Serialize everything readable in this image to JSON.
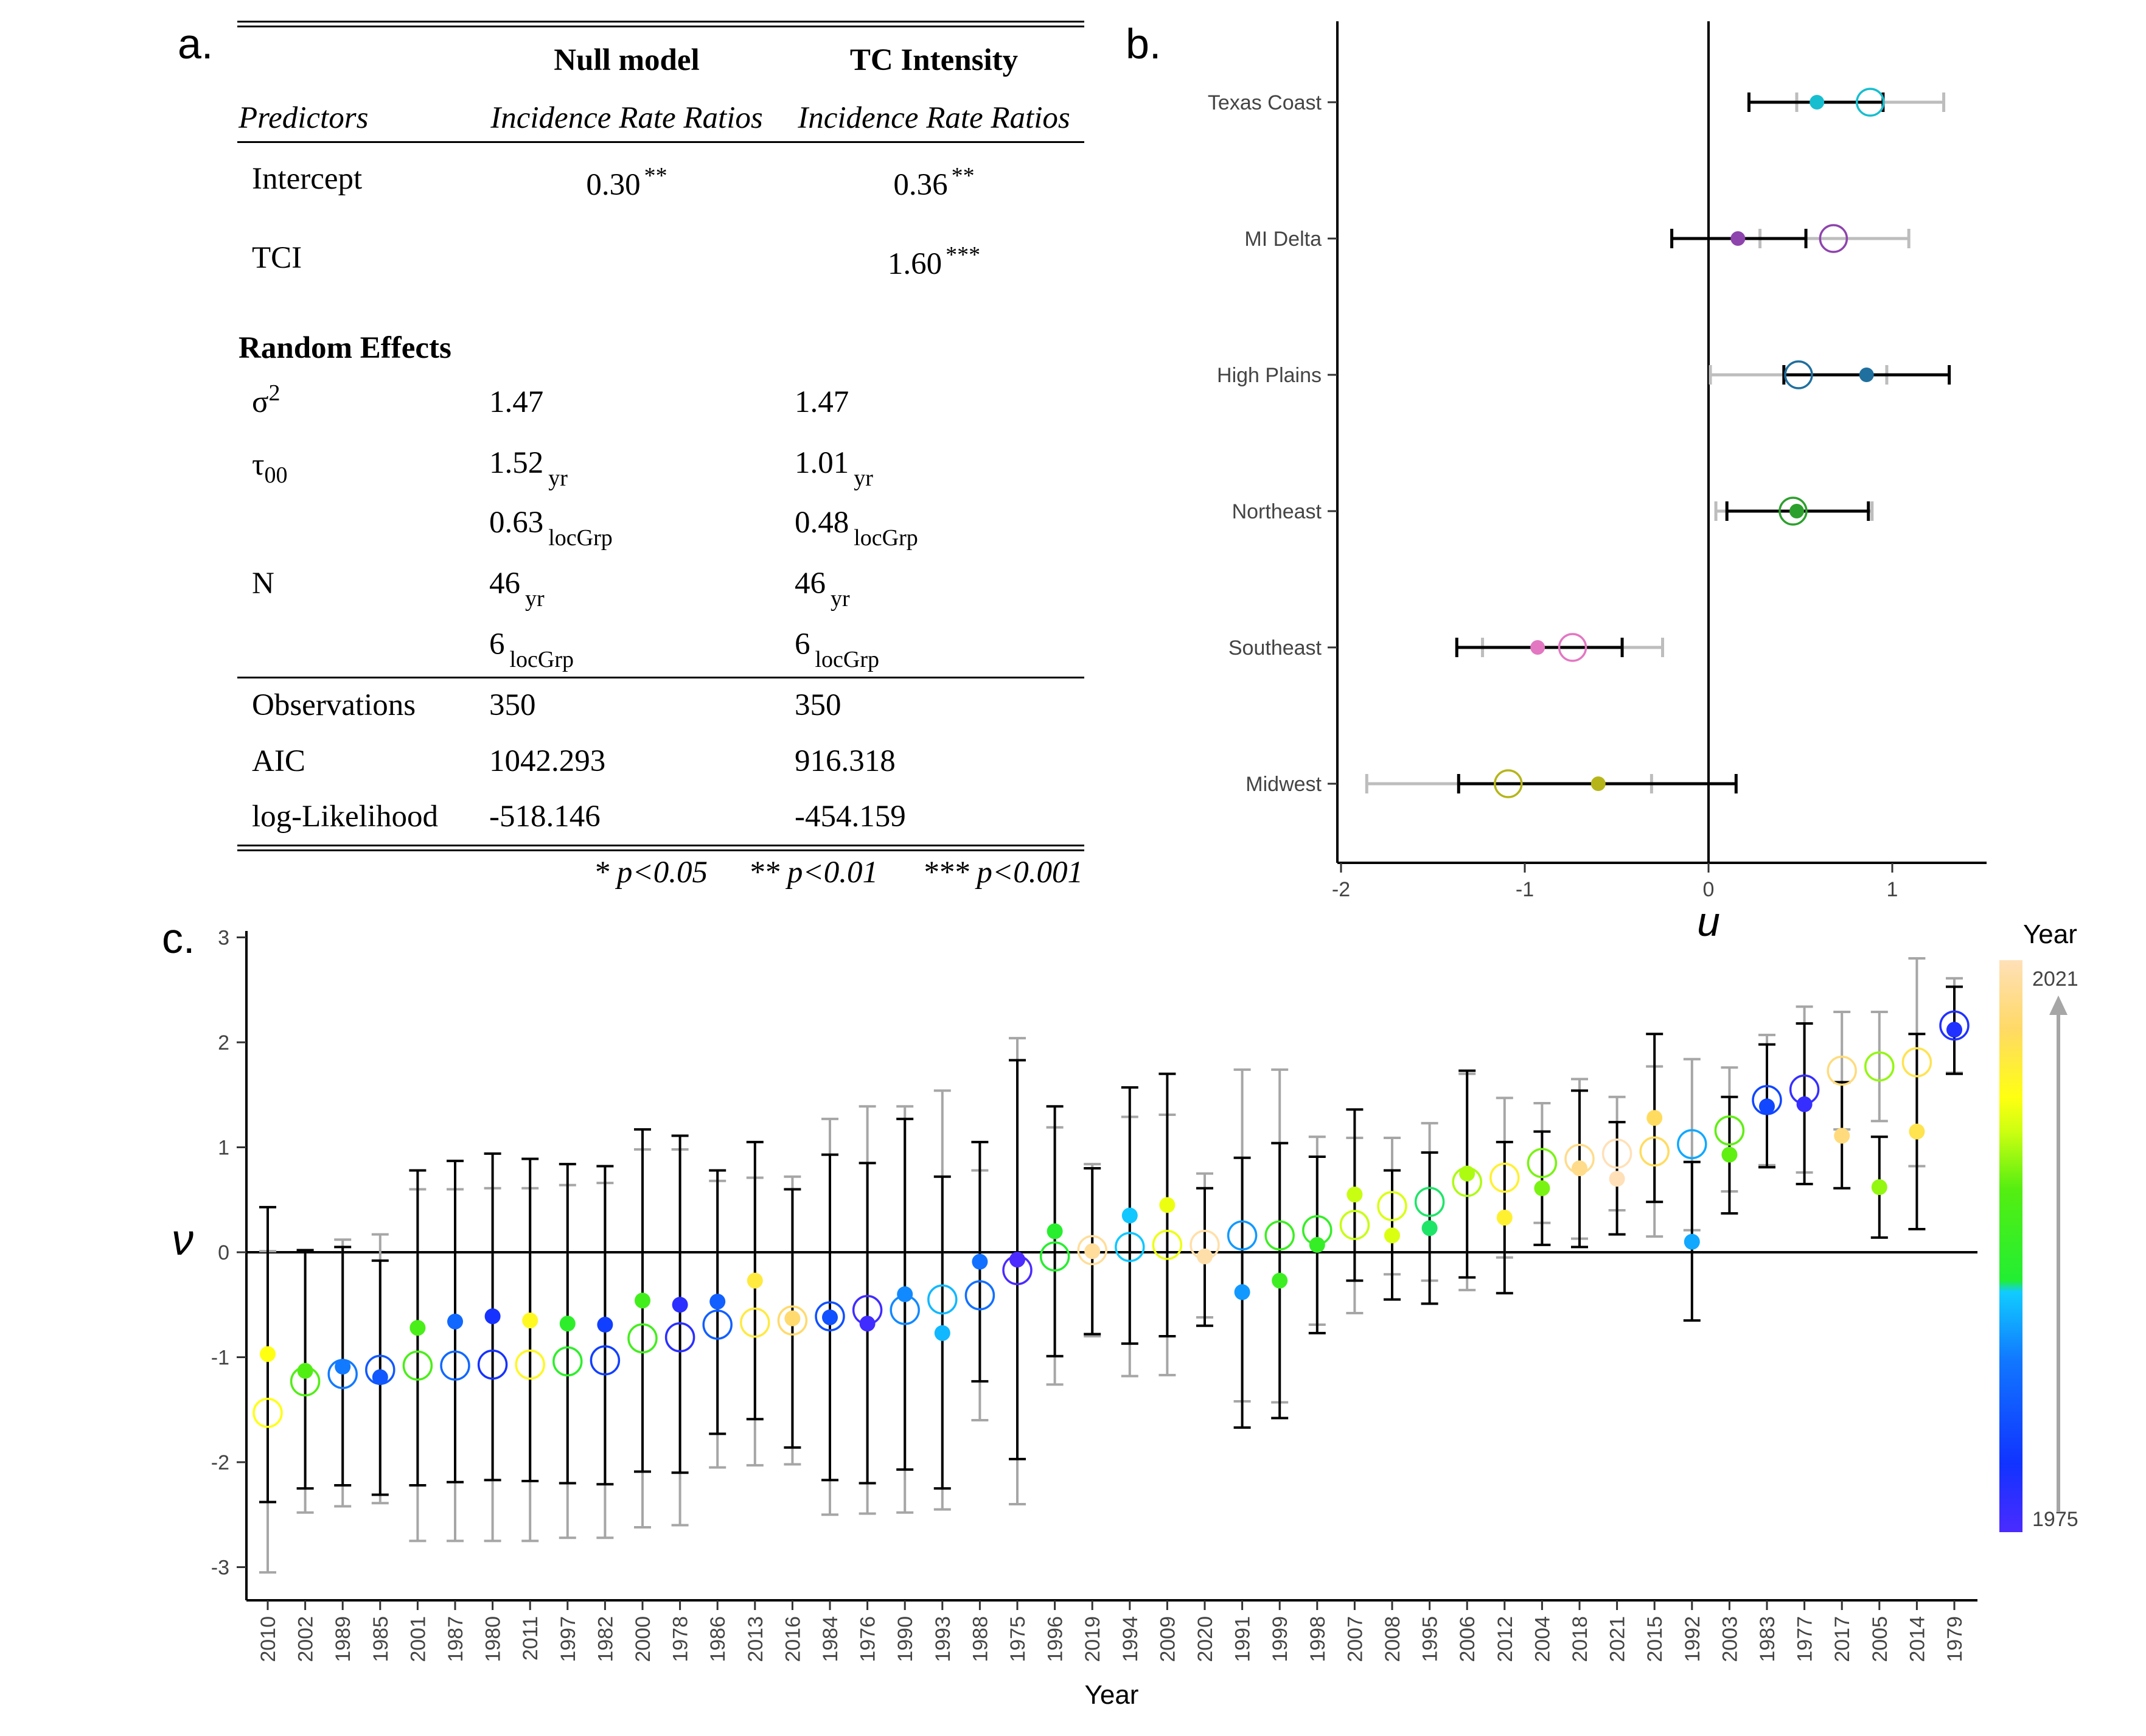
{
  "panels": {
    "a": "a.",
    "b": "b.",
    "c": "c."
  },
  "table": {
    "col_headers": [
      "Null model",
      "TC Intensity"
    ],
    "predictors_label": "Predictors",
    "sub_headers": [
      "Incidence Rate Ratios",
      "Incidence Rate Ratios"
    ],
    "rows": [
      {
        "label": "Intercept",
        "null": "0.30",
        "null_sig": "**",
        "tc": "0.36",
        "tc_sig": "**"
      },
      {
        "label": "TCI",
        "null": "",
        "null_sig": "",
        "tc": "1.60",
        "tc_sig": "***"
      }
    ],
    "random_effects_label": "Random Effects",
    "sigma_label": "σ",
    "sigma_sup": "2",
    "sigma": {
      "null": "1.47",
      "tc": "1.47"
    },
    "tau_label": "τ",
    "tau_sub": "00",
    "tau_yr": {
      "null": "1.52",
      "tc": "1.01",
      "sub": "yr"
    },
    "tau_loc": {
      "null": "0.63",
      "tc": "0.48",
      "sub": "locGrp"
    },
    "n_label": "N",
    "n_yr": {
      "null": "46",
      "tc": "46",
      "sub": "yr"
    },
    "n_loc": {
      "null": "6",
      "tc": "6",
      "sub": "locGrp"
    },
    "stats": [
      {
        "label": "Observations",
        "null": "350",
        "tc": "350"
      },
      {
        "label": "AIC",
        "null": "1042.293",
        "tc": "916.318"
      },
      {
        "label": "log-Likelihood",
        "null": "-518.146",
        "tc": "-454.159"
      }
    ],
    "footnote": [
      "* p<0.05",
      "** p<0.01",
      "*** p<0.001"
    ]
  },
  "chart_data": [
    {
      "type": "scatter",
      "title": "",
      "xlabel": "u",
      "ylabel": "",
      "xlim": [
        -2.0,
        1.5
      ],
      "x_ticks": [
        -2,
        -1,
        0,
        1
      ],
      "vline": 0,
      "categories": [
        "Texas Coast",
        "MI Delta",
        "High Plains",
        "Northeast",
        "Southeast",
        "Midwest"
      ],
      "points": [
        {
          "category": "Texas Coast",
          "color": "#17becf",
          "dot": 0.59,
          "dot_lo": 0.22,
          "dot_hi": 0.95,
          "circle": 0.88,
          "circle_lo": 0.48,
          "circle_hi": 1.28
        },
        {
          "category": "MI Delta",
          "color": "#8e44ad",
          "dot": 0.16,
          "dot_lo": -0.2,
          "dot_hi": 0.53,
          "circle": 0.68,
          "circle_lo": 0.28,
          "circle_hi": 1.09
        },
        {
          "category": "High Plains",
          "color": "#1f6f9f",
          "dot": 0.86,
          "dot_lo": 0.41,
          "dot_hi": 1.31,
          "circle": 0.49,
          "circle_lo": 0.01,
          "circle_hi": 0.97
        },
        {
          "category": "Northeast",
          "color": "#2ca02c",
          "dot": 0.48,
          "dot_lo": 0.1,
          "dot_hi": 0.87,
          "circle": 0.46,
          "circle_lo": 0.04,
          "circle_hi": 0.89
        },
        {
          "category": "Southeast",
          "color": "#e377c2",
          "dot": -0.93,
          "dot_lo": -1.37,
          "dot_hi": -0.47,
          "circle": -0.74,
          "circle_lo": -1.23,
          "circle_hi": -0.25
        },
        {
          "category": "Midwest",
          "color": "#b5b51a",
          "dot": -0.6,
          "dot_lo": -1.36,
          "dot_hi": 0.15,
          "circle": -1.09,
          "circle_lo": -1.86,
          "circle_hi": -0.31
        }
      ]
    },
    {
      "type": "scatter",
      "title": "",
      "xlabel": "Year",
      "ylabel": "ν",
      "ylim": [
        -3.3,
        3.1
      ],
      "y_ticks": [
        -3,
        -2,
        -1,
        0,
        1,
        2,
        3
      ],
      "hline": 0,
      "legend": {
        "title": "Year",
        "min_label": "1975",
        "max_label": "2021",
        "placement": "right"
      },
      "points": [
        {
          "year": "2010",
          "dot": -0.97,
          "black": [
            -2.38,
            0.43
          ],
          "circle": -1.53,
          "gray": [
            -3.05,
            0.01
          ]
        },
        {
          "year": "2002",
          "dot": -1.13,
          "black": [
            -2.25,
            0.02
          ],
          "circle": -1.23,
          "gray": [
            -2.48,
            0.02
          ]
        },
        {
          "year": "1989",
          "dot": -1.09,
          "black": [
            -2.22,
            0.05
          ],
          "circle": -1.16,
          "gray": [
            -2.42,
            0.12
          ]
        },
        {
          "year": "1985",
          "dot": -1.19,
          "black": [
            -2.31,
            -0.08
          ],
          "circle": -1.12,
          "gray": [
            -2.39,
            0.17
          ]
        },
        {
          "year": "2001",
          "dot": -0.72,
          "black": [
            -2.22,
            0.78
          ],
          "circle": -1.08,
          "gray": [
            -2.75,
            0.6
          ]
        },
        {
          "year": "1987",
          "dot": -0.66,
          "black": [
            -2.19,
            0.87
          ],
          "circle": -1.08,
          "gray": [
            -2.75,
            0.6
          ]
        },
        {
          "year": "1980",
          "dot": -0.61,
          "black": [
            -2.17,
            0.94
          ],
          "circle": -1.07,
          "gray": [
            -2.75,
            0.61
          ]
        },
        {
          "year": "2011",
          "dot": -0.65,
          "black": [
            -2.18,
            0.89
          ],
          "circle": -1.07,
          "gray": [
            -2.75,
            0.61
          ]
        },
        {
          "year": "1997",
          "dot": -0.68,
          "black": [
            -2.2,
            0.84
          ],
          "circle": -1.04,
          "gray": [
            -2.72,
            0.64
          ]
        },
        {
          "year": "1982",
          "dot": -0.69,
          "black": [
            -2.21,
            0.82
          ],
          "circle": -1.03,
          "gray": [
            -2.72,
            0.66
          ]
        },
        {
          "year": "2000",
          "dot": -0.46,
          "black": [
            -2.09,
            1.17
          ],
          "circle": -0.82,
          "gray": [
            -2.62,
            0.98
          ]
        },
        {
          "year": "1978",
          "dot": -0.5,
          "black": [
            -2.1,
            1.11
          ],
          "circle": -0.81,
          "gray": [
            -2.6,
            0.98
          ]
        },
        {
          "year": "1986",
          "dot": -0.47,
          "black": [
            -1.73,
            0.78
          ],
          "circle": -0.69,
          "gray": [
            -2.05,
            0.68
          ]
        },
        {
          "year": "2013",
          "dot": -0.27,
          "black": [
            -1.59,
            1.05
          ],
          "circle": -0.67,
          "gray": [
            -2.03,
            0.71
          ]
        },
        {
          "year": "2016",
          "dot": -0.63,
          "black": [
            -1.86,
            0.6
          ],
          "circle": -0.65,
          "gray": [
            -2.02,
            0.72
          ]
        },
        {
          "year": "1984",
          "dot": -0.62,
          "black": [
            -2.17,
            0.93
          ],
          "circle": -0.61,
          "gray": [
            -2.5,
            1.27
          ]
        },
        {
          "year": "1976",
          "dot": -0.68,
          "black": [
            -2.2,
            0.85
          ],
          "circle": -0.55,
          "gray": [
            -2.49,
            1.39
          ]
        },
        {
          "year": "1990",
          "dot": -0.4,
          "black": [
            -2.07,
            1.27
          ],
          "circle": -0.55,
          "gray": [
            -2.48,
            1.39
          ]
        },
        {
          "year": "1993",
          "dot": -0.77,
          "black": [
            -2.25,
            0.72
          ],
          "circle": -0.45,
          "gray": [
            -2.45,
            1.54
          ]
        },
        {
          "year": "1988",
          "dot": -0.09,
          "black": [
            -1.23,
            1.05
          ],
          "circle": -0.41,
          "gray": [
            -1.6,
            0.78
          ]
        },
        {
          "year": "1975",
          "dot": -0.07,
          "black": [
            -1.97,
            1.83
          ],
          "circle": -0.17,
          "gray": [
            -2.4,
            2.04
          ]
        },
        {
          "year": "1996",
          "dot": 0.2,
          "black": [
            -0.99,
            1.39
          ],
          "circle": -0.04,
          "gray": [
            -1.26,
            1.19
          ]
        },
        {
          "year": "2019",
          "dot": 0.01,
          "black": [
            -0.78,
            0.8
          ],
          "circle": 0.02,
          "gray": [
            -0.8,
            0.84
          ]
        },
        {
          "year": "1994",
          "dot": 0.35,
          "black": [
            -0.87,
            1.57
          ],
          "circle": 0.05,
          "gray": [
            -1.18,
            1.29
          ]
        },
        {
          "year": "2009",
          "dot": 0.45,
          "black": [
            -0.8,
            1.7
          ],
          "circle": 0.07,
          "gray": [
            -1.17,
            1.31
          ]
        },
        {
          "year": "2020",
          "dot": -0.04,
          "black": [
            -0.7,
            0.61
          ],
          "circle": 0.07,
          "gray": [
            -0.62,
            0.75
          ]
        },
        {
          "year": "1991",
          "dot": -0.38,
          "black": [
            -1.67,
            0.9
          ],
          "circle": 0.16,
          "gray": [
            -1.42,
            1.74
          ]
        },
        {
          "year": "1999",
          "dot": -0.27,
          "black": [
            -1.58,
            1.04
          ],
          "circle": 0.16,
          "gray": [
            -1.43,
            1.74
          ]
        },
        {
          "year": "1998",
          "dot": 0.07,
          "black": [
            -0.77,
            0.91
          ],
          "circle": 0.21,
          "gray": [
            -0.69,
            1.1
          ]
        },
        {
          "year": "2007",
          "dot": 0.55,
          "black": [
            -0.27,
            1.36
          ],
          "circle": 0.26,
          "gray": [
            -0.58,
            1.09
          ]
        },
        {
          "year": "2008",
          "dot": 0.16,
          "black": [
            -0.45,
            0.78
          ],
          "circle": 0.44,
          "gray": [
            -0.21,
            1.09
          ]
        },
        {
          "year": "1995",
          "dot": 0.23,
          "black": [
            -0.49,
            0.95
          ],
          "circle": 0.48,
          "gray": [
            -0.27,
            1.23
          ]
        },
        {
          "year": "2006",
          "dot": 0.75,
          "black": [
            -0.24,
            1.73
          ],
          "circle": 0.67,
          "gray": [
            -0.36,
            1.7
          ]
        },
        {
          "year": "2012",
          "dot": 0.33,
          "black": [
            -0.39,
            1.05
          ],
          "circle": 0.71,
          "gray": [
            -0.05,
            1.47
          ]
        },
        {
          "year": "2004",
          "dot": 0.61,
          "black": [
            0.07,
            1.15
          ],
          "circle": 0.85,
          "gray": [
            0.28,
            1.42
          ]
        },
        {
          "year": "2018",
          "dot": 0.8,
          "black": [
            0.05,
            1.54
          ],
          "circle": 0.89,
          "gray": [
            0.13,
            1.65
          ]
        },
        {
          "year": "2021",
          "dot": 0.7,
          "black": [
            0.17,
            1.24
          ],
          "circle": 0.94,
          "gray": [
            0.4,
            1.48
          ]
        },
        {
          "year": "2015",
          "dot": 1.28,
          "black": [
            0.48,
            2.08
          ],
          "circle": 0.96,
          "gray": [
            0.15,
            1.77
          ]
        },
        {
          "year": "1992",
          "dot": 0.1,
          "black": [
            -0.65,
            0.86
          ],
          "circle": 1.03,
          "gray": [
            0.21,
            1.84
          ]
        },
        {
          "year": "2003",
          "dot": 0.93,
          "black": [
            0.37,
            1.48
          ],
          "circle": 1.16,
          "gray": [
            0.58,
            1.76
          ]
        },
        {
          "year": "1983",
          "dot": 1.39,
          "black": [
            0.81,
            1.98
          ],
          "circle": 1.45,
          "gray": [
            0.83,
            2.07
          ]
        },
        {
          "year": "1977",
          "dot": 1.41,
          "black": [
            0.65,
            2.18
          ],
          "circle": 1.55,
          "gray": [
            0.76,
            2.34
          ]
        },
        {
          "year": "2017",
          "dot": 1.11,
          "black": [
            0.61,
            1.62
          ],
          "circle": 1.73,
          "gray": [
            1.17,
            2.29
          ]
        },
        {
          "year": "2005",
          "dot": 0.62,
          "black": [
            0.14,
            1.1
          ],
          "circle": 1.77,
          "gray": [
            1.25,
            2.29
          ]
        },
        {
          "year": "2014",
          "dot": 1.15,
          "black": [
            0.22,
            2.08
          ],
          "circle": 1.81,
          "gray": [
            0.82,
            2.8
          ]
        },
        {
          "year": "1979",
          "dot": 2.12,
          "black": [
            1.7,
            2.53
          ],
          "circle": 2.16,
          "gray": [
            1.71,
            2.61
          ]
        }
      ]
    }
  ]
}
